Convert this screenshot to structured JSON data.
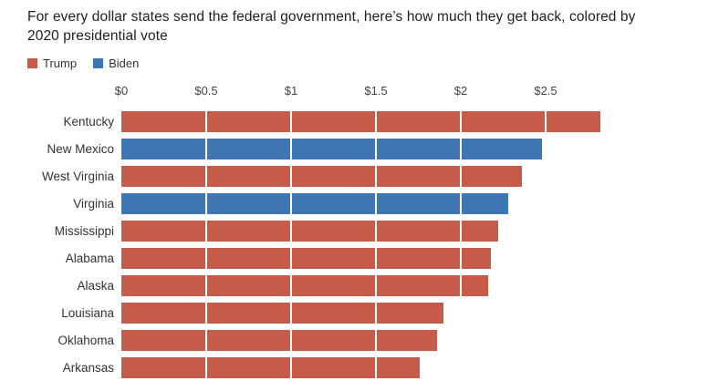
{
  "title": "For every dollar states send the federal government, here’s how much they get back, colored by 2020 presidential vote",
  "legend": {
    "items": [
      {
        "label": "Trump",
        "color": "#c75b4a"
      },
      {
        "label": "Biden",
        "color": "#3d76b3"
      }
    ]
  },
  "chart_data": {
    "type": "bar",
    "orientation": "horizontal",
    "title": "For every dollar states send the federal government, here’s how much they get back, colored by 2020 presidential vote",
    "x_tick_labels": [
      "$0",
      "$0.5",
      "$1",
      "$1.5",
      "$2",
      "$2.5"
    ],
    "x_tick_values": [
      0,
      0.5,
      1,
      1.5,
      2,
      2.5
    ],
    "xlim": [
      0,
      2.82
    ],
    "grid": "white-overlay-on-bars",
    "legend_position": "top-left",
    "series_colors": {
      "Trump": "#c75b4a",
      "Biden": "#3d76b3"
    },
    "bars": [
      {
        "state": "Kentucky",
        "value": 2.82,
        "party": "Trump"
      },
      {
        "state": "New Mexico",
        "value": 2.48,
        "party": "Biden"
      },
      {
        "state": "West Virginia",
        "value": 2.36,
        "party": "Trump"
      },
      {
        "state": "Virginia",
        "value": 2.28,
        "party": "Biden"
      },
      {
        "state": "Mississippi",
        "value": 2.22,
        "party": "Trump"
      },
      {
        "state": "Alabama",
        "value": 2.18,
        "party": "Trump"
      },
      {
        "state": "Alaska",
        "value": 2.16,
        "party": "Trump"
      },
      {
        "state": "Louisiana",
        "value": 1.9,
        "party": "Trump"
      },
      {
        "state": "Oklahoma",
        "value": 1.86,
        "party": "Trump"
      },
      {
        "state": "Arkansas",
        "value": 1.76,
        "party": "Trump"
      }
    ]
  }
}
